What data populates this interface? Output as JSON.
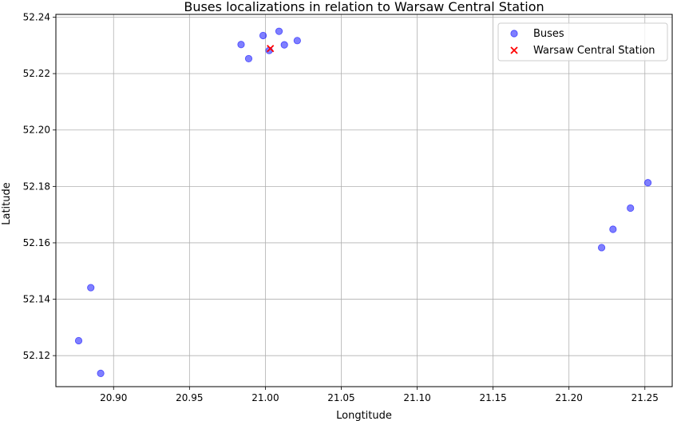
{
  "chart_data": {
    "type": "scatter",
    "title": "Buses localizations in relation to Warsaw Central Station",
    "xlabel": "Longtitude",
    "ylabel": "Latitude",
    "xlim": [
      20.862,
      21.268
    ],
    "ylim": [
      52.109,
      52.241
    ],
    "xticks": [
      "20.90",
      "20.95",
      "21.00",
      "21.05",
      "21.10",
      "21.15",
      "21.20",
      "21.25"
    ],
    "yticks": [
      "52.12",
      "52.14",
      "52.16",
      "52.18",
      "52.20",
      "52.22",
      "52.24"
    ],
    "grid": true,
    "legend_position": "top-right",
    "series": [
      {
        "name": "Buses",
        "marker": "circle",
        "color": "#0000ff",
        "points": [
          [
            20.9985,
            52.2335
          ],
          [
            21.009,
            52.235
          ],
          [
            20.984,
            52.2303
          ],
          [
            21.0125,
            52.2302
          ],
          [
            21.021,
            52.2317
          ],
          [
            20.989,
            52.2253
          ],
          [
            21.0025,
            52.2282
          ],
          [
            21.252,
            52.1813
          ],
          [
            21.2405,
            52.1723
          ],
          [
            21.229,
            52.1648
          ],
          [
            21.2215,
            52.1583
          ],
          [
            20.885,
            52.1441
          ],
          [
            20.877,
            52.1253
          ],
          [
            20.8915,
            52.1137
          ]
        ]
      },
      {
        "name": "Warsaw Central Station",
        "marker": "x",
        "color": "#ff0000",
        "points": [
          [
            21.0033,
            52.2289
          ]
        ]
      }
    ]
  }
}
